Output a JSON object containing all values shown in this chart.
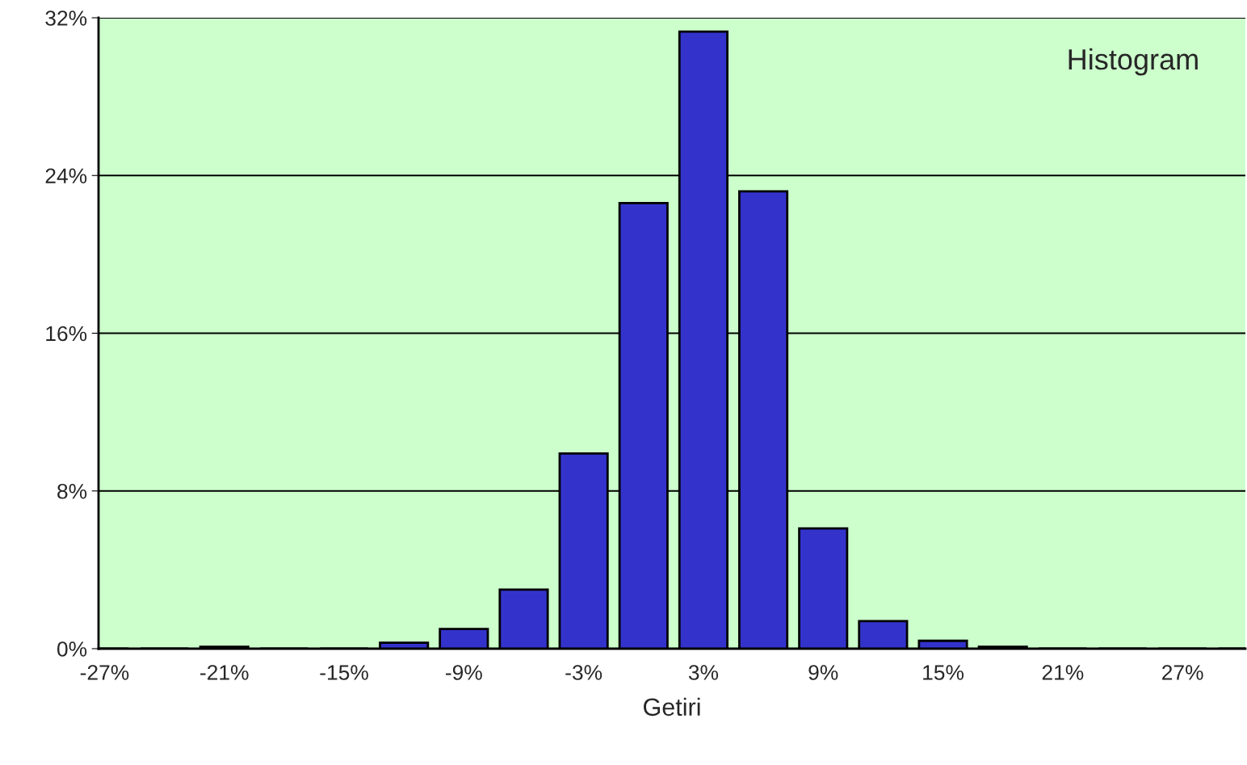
{
  "chart_data": {
    "type": "bar",
    "xlabel": "Getiri",
    "categories": [
      "-27%",
      null,
      "-21%",
      null,
      "-15%",
      null,
      "-9%",
      null,
      "-3%",
      null,
      "3%",
      null,
      "9%",
      null,
      "15%",
      null,
      "21%",
      null,
      "27%",
      null
    ],
    "values": [
      0,
      0,
      0.1,
      0,
      0,
      0.3,
      1.0,
      3.0,
      9.9,
      22.6,
      31.3,
      23.2,
      6.1,
      1.4,
      0.4,
      0.1,
      0,
      0,
      0,
      0
    ],
    "color": "#3333cc",
    "ylim": [
      0,
      32
    ],
    "yticks": [
      {
        "value": 0,
        "label": "0%"
      },
      {
        "value": 8,
        "label": "8%"
      },
      {
        "value": 16,
        "label": "16%"
      },
      {
        "value": 24,
        "label": "24%"
      },
      {
        "value": 32,
        "label": "32%"
      }
    ],
    "grid": "y",
    "legend": false,
    "annotations": [
      "Histogram"
    ]
  }
}
